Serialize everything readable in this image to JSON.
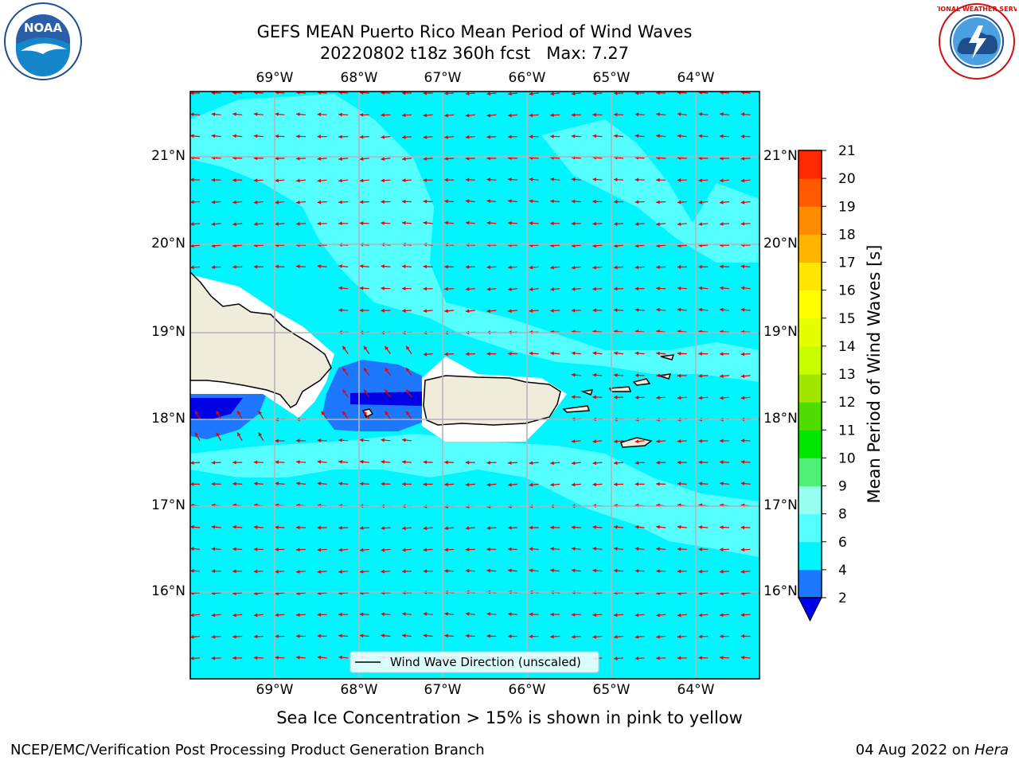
{
  "header": {
    "title_line1": "GEFS MEAN Puerto Rico Mean Period of Wind Waves",
    "title_line2": "20220802 t18z 360h fcst   Max: 7.27"
  },
  "logos": {
    "noaa_text": "NOAA",
    "nws_text": "NATIONAL WEATHER SERVICE"
  },
  "map": {
    "lon_ticks": [
      "69°W",
      "68°W",
      "67°W",
      "66°W",
      "65°W",
      "64°W"
    ],
    "lat_ticks": [
      "21°N",
      "20°N",
      "19°N",
      "18°N",
      "17°N",
      "16°N"
    ],
    "legend_label": "Wind Wave Direction (unscaled)",
    "colors": {
      "ocean_6_8": "#55ffff",
      "ocean_4_6": "#00f5ff",
      "ocean_2_4": "#1e78ff",
      "ocean_lt2": "#0000e6",
      "land": "#efecdc",
      "arrow": "#e60000",
      "grid": "#b4b4b4"
    }
  },
  "colorbar": {
    "label": "Mean Period of Wind Waves [s]",
    "ticks": [
      "2",
      "4",
      "6",
      "8",
      "9",
      "10",
      "11",
      "12",
      "13",
      "14",
      "15",
      "16",
      "17",
      "18",
      "19",
      "20",
      "21"
    ],
    "colors": [
      "#1e78ff",
      "#00f5ff",
      "#55ffff",
      "#96fff0",
      "#50f078",
      "#00e600",
      "#50dc00",
      "#a0e600",
      "#c8ff00",
      "#e6ff00",
      "#ffff00",
      "#ffe600",
      "#ffb400",
      "#ff8c00",
      "#ff5a00",
      "#ff2800",
      "#e60000"
    ],
    "under_color": "#0000e6"
  },
  "note": "Sea Ice Concentration > 15% is shown in pink to yellow",
  "footer": {
    "left": "NCEP/EMC/Verification Post Processing Product Generation Branch",
    "right_date": "04 Aug 2022 on ",
    "right_host": "Hera"
  }
}
